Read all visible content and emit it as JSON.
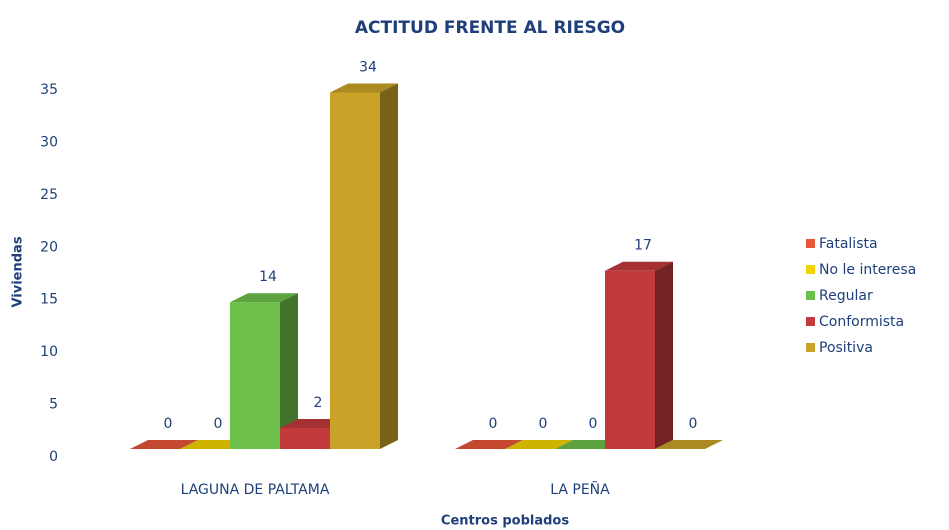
{
  "chart_data": {
    "type": "bar3d",
    "title": "ACTITUD FRENTE AL RIESGO",
    "x_label": "Centros poblados",
    "y_label": "Viviendas",
    "categories": [
      "LAGUNA DE PALTAMA",
      "LA PEÑA"
    ],
    "series": [
      {
        "name": "Fatalista",
        "color": "#e8553a",
        "values": [
          0,
          0
        ]
      },
      {
        "name": "No le interesa",
        "color": "#f2d200",
        "values": [
          0,
          0
        ]
      },
      {
        "name": "Regular",
        "color": "#6cc04a",
        "values": [
          14,
          0
        ]
      },
      {
        "name": "Conformista",
        "color": "#c23a3c",
        "values": [
          2,
          17
        ]
      },
      {
        "name": "Positiva",
        "color": "#c9a227",
        "values": [
          34,
          0
        ]
      }
    ],
    "ylim": [
      0,
      35
    ],
    "yticks": [
      0,
      5,
      10,
      15,
      20,
      25,
      30,
      35
    ],
    "legend": "right"
  }
}
